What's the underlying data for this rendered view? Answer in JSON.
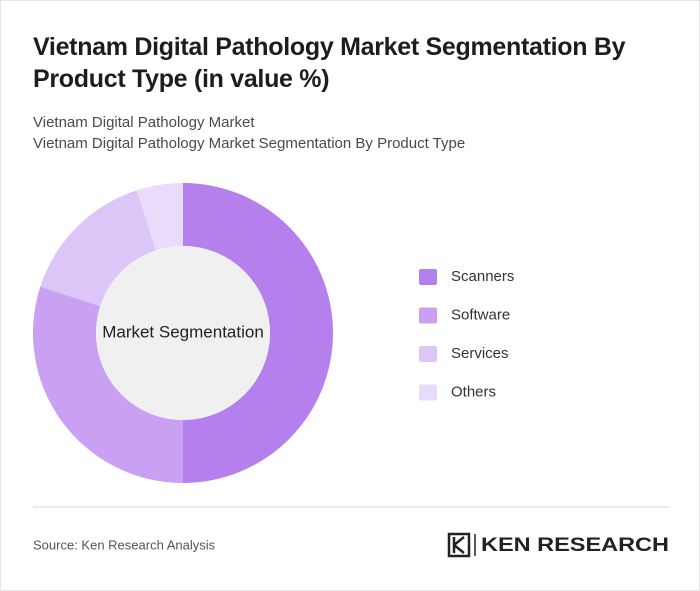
{
  "chart_data": {
    "type": "donut",
    "title": "Vietnam Digital Pathology Market Segmentation By Product Type (in value %)",
    "subtitle": [
      "Vietnam Digital Pathology Market",
      "Vietnam Digital Pathology Market Segmentation By Product Type"
    ],
    "center_label": "Market Segmentation",
    "categories": [
      "Scanners",
      "Software",
      "Services",
      "Others"
    ],
    "values": [
      50,
      30,
      15,
      5
    ],
    "colors": [
      "#b57fee",
      "#c9a0f2",
      "#dcc5f7",
      "#e9dcfa"
    ]
  },
  "footer": {
    "source": "Source: Ken Research Analysis",
    "logo": "KEN RESEARCH"
  }
}
